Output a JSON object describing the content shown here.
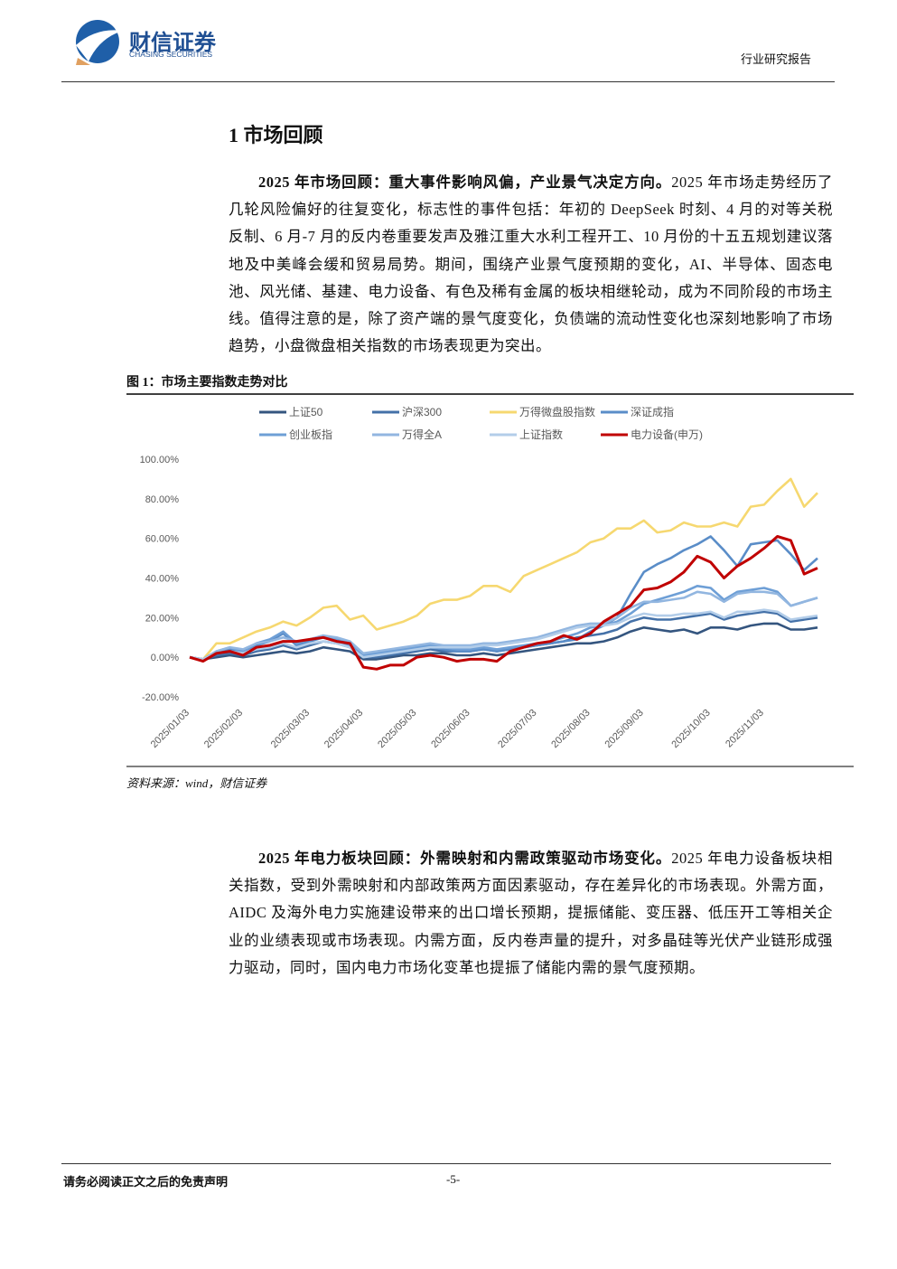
{
  "header": {
    "brand": "财信证券",
    "brand_en": "CHASING SECURITIES",
    "report_type": "行业研究报告"
  },
  "section_title": "1 市场回顾",
  "paragraphs": [
    {
      "lead": "2025 年市场回顾：重大事件影响风偏，产业景气决定方向。",
      "text": "2025 年市场走势经历了几轮风险偏好的往复变化，标志性的事件包括：年初的 DeepSeek 时刻、4 月的对等关税反制、6 月-7 月的反内卷重要发声及雅江重大水利工程开工、10 月份的十五五规划建议落地及中美峰会缓和贸易局势。期间，围绕产业景气度预期的变化，AI、半导体、固态电池、风光储、基建、电力设备、有色及稀有金属的板块相继轮动，成为不同阶段的市场主线。值得注意的是，除了资产端的景气度变化，负债端的流动性变化也深刻地影响了市场趋势，小盘微盘相关指数的市场表现更为突出。"
    },
    {
      "lead": "2025 年电力板块回顾：外需映射和内需政策驱动市场变化。",
      "text": "2025 年电力设备板块相关指数，受到外需映射和内部政策两方面因素驱动，存在差异化的市场表现。外需方面，AIDC 及海外电力实施建设带来的出口增长预期，提振储能、变压器、低压开工等相关企业的业绩表现或市场表现。内需方面，反内卷声量的提升，对多晶硅等光伏产业链形成强力驱动，同时，国内电力市场化变革也提振了储能内需的景气度预期。"
    }
  ],
  "figure": {
    "caption": "图 1：市场主要指数走势对比",
    "source": "资料来源：wind，财信证券"
  },
  "chart_data": {
    "type": "line",
    "categories": [
      "2025/01/03",
      null,
      null,
      null,
      "2025/02/03",
      null,
      null,
      null,
      null,
      "2025/03/03",
      null,
      null,
      null,
      "2025/04/03",
      null,
      null,
      null,
      "2025/05/03",
      null,
      null,
      null,
      "2025/06/03",
      null,
      null,
      null,
      null,
      "2025/07/03",
      null,
      null,
      null,
      "2025/08/03",
      null,
      null,
      null,
      "2025/09/03",
      null,
      null,
      null,
      null,
      "2025/10/03",
      null,
      null,
      null,
      "2025/11/03",
      null,
      null,
      null,
      null
    ],
    "ylim": [
      -20,
      100
    ],
    "yticks": [
      {
        "value": 100,
        "label": "100.00%"
      },
      {
        "value": 80,
        "label": "80.00%"
      },
      {
        "value": 60,
        "label": "60.00%"
      },
      {
        "value": 40,
        "label": "40.00%"
      },
      {
        "value": 20,
        "label": "20.00%"
      },
      {
        "value": 0,
        "label": "0.00%"
      },
      {
        "value": -20,
        "label": "-20.00%"
      }
    ],
    "grid": false,
    "series": [
      {
        "name": "上证50",
        "color": "#34557f",
        "values": [
          0,
          -1,
          0,
          1,
          0,
          1,
          2,
          3,
          2,
          3,
          5,
          4,
          3,
          -1,
          -1,
          0,
          1,
          1,
          2,
          2,
          1,
          1,
          2,
          1,
          2,
          3,
          4,
          5,
          6,
          7,
          7,
          8,
          10,
          13,
          15,
          14,
          13,
          14,
          12,
          15,
          15,
          14,
          16,
          17,
          17,
          14,
          14,
          15
        ]
      },
      {
        "name": "沪深300",
        "color": "#4471a8",
        "values": [
          0,
          -1,
          1,
          2,
          1,
          3,
          4,
          6,
          4,
          6,
          8,
          7,
          5,
          0,
          0,
          1,
          2,
          3,
          4,
          3,
          3,
          3,
          4,
          3,
          4,
          5,
          6,
          7,
          8,
          10,
          11,
          12,
          14,
          18,
          20,
          19,
          19,
          20,
          21,
          22,
          19,
          21,
          22,
          23,
          22,
          18,
          19,
          20
        ]
      },
      {
        "name": "万得微盘股指数",
        "color": "#f6d870",
        "values": [
          0,
          -1,
          7,
          7,
          10,
          13,
          15,
          18,
          16,
          20,
          25,
          26,
          19,
          21,
          14,
          16,
          18,
          21,
          27,
          29,
          29,
          31,
          36,
          36,
          33,
          41,
          44,
          47,
          50,
          53,
          58,
          60,
          65,
          65,
          69,
          63,
          64,
          68,
          66,
          66,
          68,
          66,
          76,
          77,
          84,
          90,
          76,
          83
        ]
      },
      {
        "name": "深证成指",
        "color": "#5a8dc8",
        "values": [
          0,
          -1,
          2,
          4,
          3,
          6,
          8,
          12,
          6,
          8,
          10,
          8,
          6,
          0,
          1,
          2,
          3,
          4,
          5,
          4,
          3,
          3,
          4,
          3,
          4,
          5,
          6,
          7,
          8,
          9,
          13,
          16,
          20,
          32,
          43,
          47,
          50,
          54,
          57,
          61,
          54,
          46,
          57,
          58,
          59,
          52,
          44,
          50
        ]
      },
      {
        "name": "创业板指",
        "color": "#6e9fd6",
        "values": [
          0,
          -1,
          3,
          5,
          3,
          7,
          9,
          13,
          7,
          9,
          11,
          9,
          7,
          1,
          2,
          3,
          4,
          5,
          6,
          5,
          4,
          4,
          5,
          4,
          5,
          6,
          7,
          8,
          10,
          12,
          15,
          16,
          18,
          22,
          27,
          29,
          31,
          33,
          36,
          35,
          29,
          33,
          34,
          35,
          33,
          26,
          28,
          30
        ]
      },
      {
        "name": "万得全A",
        "color": "#92b6e0",
        "values": [
          0,
          -1,
          3,
          5,
          4,
          7,
          8,
          10,
          8,
          9,
          11,
          10,
          8,
          2,
          3,
          4,
          5,
          6,
          7,
          6,
          6,
          6,
          7,
          7,
          8,
          9,
          10,
          12,
          14,
          16,
          17,
          17,
          20,
          25,
          28,
          28,
          29,
          30,
          33,
          32,
          28,
          32,
          33,
          33,
          32,
          26,
          28,
          30
        ]
      },
      {
        "name": "上证指数",
        "color": "#b3cde9",
        "values": [
          0,
          -1,
          2,
          3,
          2,
          4,
          5,
          7,
          5,
          7,
          8,
          7,
          5,
          0,
          1,
          2,
          3,
          4,
          5,
          5,
          5,
          5,
          6,
          6,
          7,
          8,
          9,
          11,
          13,
          15,
          16,
          16,
          17,
          20,
          22,
          21,
          21,
          22,
          22,
          23,
          20,
          23,
          23,
          24,
          23,
          19,
          20,
          21
        ]
      },
      {
        "name": "电力设备(申万)",
        "color": "#c00000",
        "values": [
          0,
          -2,
          2,
          3,
          1,
          5,
          6,
          8,
          8,
          9,
          10,
          8,
          7,
          -5,
          -6,
          -4,
          -4,
          0,
          1,
          0,
          -2,
          -1,
          -1,
          -2,
          3,
          5,
          7,
          8,
          11,
          9,
          12,
          18,
          22,
          26,
          34,
          35,
          38,
          43,
          51,
          48,
          40,
          46,
          50,
          55,
          61,
          59,
          42,
          45
        ]
      }
    ]
  },
  "footer": {
    "disclaimer": "请务必阅读正文之后的免责声明",
    "page": "-5-"
  }
}
